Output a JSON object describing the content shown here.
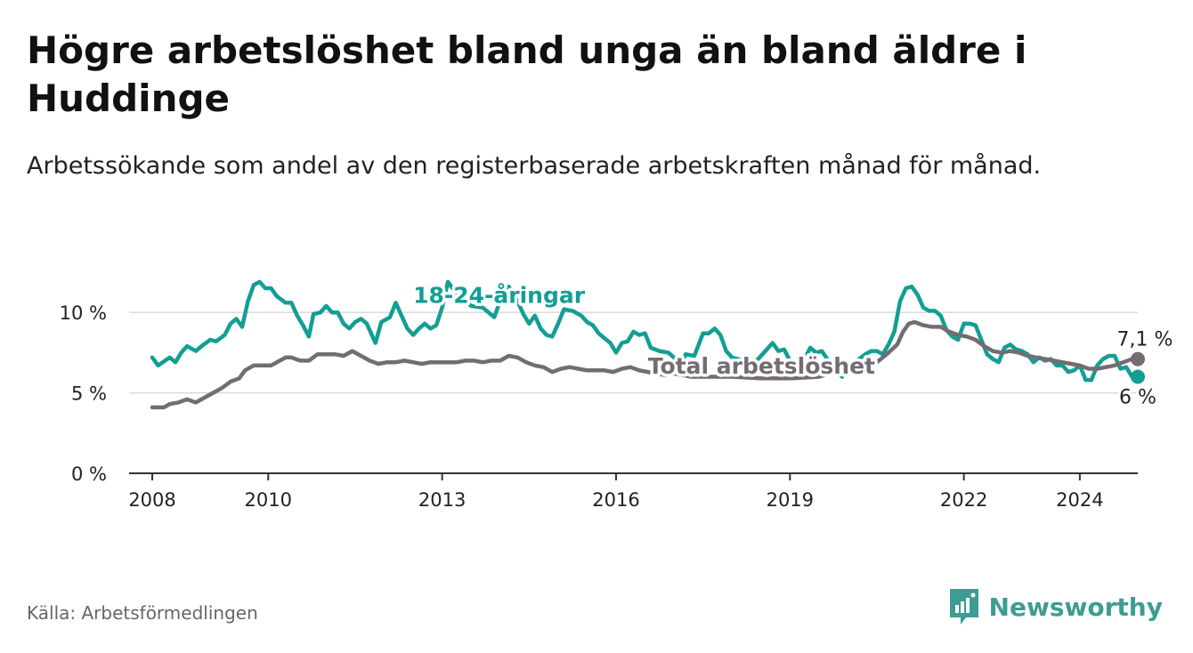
{
  "title": "Högre arbetslöshet bland unga än bland äldre i Huddinge",
  "subtitle": "Arbetssökande som andel av den registerbaserade arbetskraften månad för månad.",
  "source": "Källa: Arbetsförmedlingen",
  "brand": {
    "name": "Newsworthy",
    "icon": "newsworthy-logo-icon",
    "color": "#3d9c94"
  },
  "colors": {
    "youth": "#139e94",
    "total": "#736d73",
    "grid": "#d9d9d9",
    "axis": "#333333"
  },
  "chart_data": {
    "type": "line",
    "title": "Högre arbetslöshet bland unga än bland äldre i Huddinge",
    "xlabel": "",
    "ylabel": "",
    "xlim": [
      2007.6,
      2025.0
    ],
    "ylim": [
      0,
      12
    ],
    "y_ticks": [
      {
        "value": 0,
        "label": "0 %"
      },
      {
        "value": 5,
        "label": "5 %"
      },
      {
        "value": 10,
        "label": "10 %"
      }
    ],
    "x_ticks": [
      {
        "value": 2008,
        "label": "2008"
      },
      {
        "value": 2010,
        "label": "2010"
      },
      {
        "value": 2013,
        "label": "2013"
      },
      {
        "value": 2016,
        "label": "2016"
      },
      {
        "value": 2019,
        "label": "2019"
      },
      {
        "value": 2022,
        "label": "2022"
      },
      {
        "value": 2024,
        "label": "2024"
      }
    ],
    "series": [
      {
        "name": "18-24-åringar",
        "label": "18-24-åringar",
        "color": "#139e94",
        "end_label": "6 %",
        "points": [
          [
            2008.0,
            7.2
          ],
          [
            2008.1,
            6.7
          ],
          [
            2008.3,
            7.2
          ],
          [
            2008.4,
            6.9
          ],
          [
            2008.5,
            7.5
          ],
          [
            2008.6,
            7.9
          ],
          [
            2008.75,
            7.6
          ],
          [
            2008.85,
            7.9
          ],
          [
            2009.0,
            8.3
          ],
          [
            2009.1,
            8.2
          ],
          [
            2009.25,
            8.6
          ],
          [
            2009.35,
            9.3
          ],
          [
            2009.45,
            9.6
          ],
          [
            2009.55,
            9.1
          ],
          [
            2009.65,
            10.7
          ],
          [
            2009.75,
            11.7
          ],
          [
            2009.85,
            11.9
          ],
          [
            2009.95,
            11.5
          ],
          [
            2010.05,
            11.5
          ],
          [
            2010.15,
            11.0
          ],
          [
            2010.3,
            10.6
          ],
          [
            2010.4,
            10.6
          ],
          [
            2010.5,
            9.8
          ],
          [
            2010.6,
            9.2
          ],
          [
            2010.7,
            8.5
          ],
          [
            2010.78,
            9.9
          ],
          [
            2010.9,
            10.0
          ],
          [
            2011.0,
            10.4
          ],
          [
            2011.1,
            10.0
          ],
          [
            2011.2,
            10.0
          ],
          [
            2011.3,
            9.3
          ],
          [
            2011.4,
            9.0
          ],
          [
            2011.5,
            9.4
          ],
          [
            2011.6,
            9.6
          ],
          [
            2011.7,
            9.3
          ],
          [
            2011.85,
            8.1
          ],
          [
            2011.95,
            9.4
          ],
          [
            2012.1,
            9.7
          ],
          [
            2012.2,
            10.6
          ],
          [
            2012.3,
            9.8
          ],
          [
            2012.4,
            9.0
          ],
          [
            2012.5,
            8.6
          ],
          [
            2012.6,
            9.0
          ],
          [
            2012.7,
            9.3
          ],
          [
            2012.8,
            9.0
          ],
          [
            2012.9,
            9.2
          ],
          [
            2013.0,
            10.3
          ],
          [
            2013.1,
            11.9
          ],
          [
            2013.2,
            11.4
          ],
          [
            2013.3,
            11.0
          ],
          [
            2013.5,
            10.4
          ],
          [
            2013.7,
            10.3
          ],
          [
            2013.9,
            9.7
          ],
          [
            2014.0,
            10.7
          ],
          [
            2014.15,
            11.6
          ],
          [
            2014.3,
            10.7
          ],
          [
            2014.4,
            9.9
          ],
          [
            2014.5,
            9.3
          ],
          [
            2014.6,
            9.8
          ],
          [
            2014.7,
            9.0
          ],
          [
            2014.8,
            8.6
          ],
          [
            2014.9,
            8.5
          ],
          [
            2015.0,
            9.3
          ],
          [
            2015.1,
            10.2
          ],
          [
            2015.25,
            10.1
          ],
          [
            2015.4,
            9.8
          ],
          [
            2015.5,
            9.4
          ],
          [
            2015.6,
            9.2
          ],
          [
            2015.7,
            8.7
          ],
          [
            2015.8,
            8.4
          ],
          [
            2015.9,
            8.1
          ],
          [
            2016.0,
            7.5
          ],
          [
            2016.1,
            8.1
          ],
          [
            2016.2,
            8.2
          ],
          [
            2016.3,
            8.8
          ],
          [
            2016.4,
            8.6
          ],
          [
            2016.5,
            8.7
          ],
          [
            2016.6,
            7.8
          ],
          [
            2016.75,
            7.6
          ],
          [
            2016.9,
            7.5
          ],
          [
            2017.0,
            7.2
          ],
          [
            2017.1,
            6.5
          ],
          [
            2017.2,
            7.4
          ],
          [
            2017.35,
            7.3
          ],
          [
            2017.5,
            8.7
          ],
          [
            2017.6,
            8.7
          ],
          [
            2017.7,
            9.0
          ],
          [
            2017.8,
            8.6
          ],
          [
            2017.9,
            7.6
          ],
          [
            2018.0,
            7.2
          ],
          [
            2018.2,
            7.0
          ],
          [
            2018.4,
            6.9
          ],
          [
            2018.6,
            7.7
          ],
          [
            2018.7,
            8.1
          ],
          [
            2018.8,
            7.6
          ],
          [
            2018.9,
            7.7
          ],
          [
            2019.0,
            7.0
          ],
          [
            2019.1,
            6.9
          ],
          [
            2019.2,
            6.7
          ],
          [
            2019.35,
            7.8
          ],
          [
            2019.45,
            7.5
          ],
          [
            2019.55,
            7.6
          ],
          [
            2019.7,
            6.8
          ],
          [
            2019.8,
            6.3
          ],
          [
            2019.9,
            6.0
          ],
          [
            2020.0,
            6.6
          ],
          [
            2020.15,
            7.0
          ],
          [
            2020.3,
            7.4
          ],
          [
            2020.4,
            7.6
          ],
          [
            2020.5,
            7.6
          ],
          [
            2020.6,
            7.4
          ],
          [
            2020.7,
            8.0
          ],
          [
            2020.8,
            8.8
          ],
          [
            2020.9,
            10.7
          ],
          [
            2021.0,
            11.5
          ],
          [
            2021.1,
            11.6
          ],
          [
            2021.2,
            11.1
          ],
          [
            2021.3,
            10.3
          ],
          [
            2021.4,
            10.1
          ],
          [
            2021.5,
            10.1
          ],
          [
            2021.6,
            9.8
          ],
          [
            2021.7,
            8.9
          ],
          [
            2021.8,
            8.5
          ],
          [
            2021.9,
            8.3
          ],
          [
            2022.0,
            9.3
          ],
          [
            2022.1,
            9.3
          ],
          [
            2022.2,
            9.2
          ],
          [
            2022.3,
            8.3
          ],
          [
            2022.4,
            7.4
          ],
          [
            2022.5,
            7.1
          ],
          [
            2022.6,
            6.9
          ],
          [
            2022.7,
            7.8
          ],
          [
            2022.8,
            8.0
          ],
          [
            2022.9,
            7.7
          ],
          [
            2023.0,
            7.6
          ],
          [
            2023.1,
            7.4
          ],
          [
            2023.2,
            6.9
          ],
          [
            2023.3,
            7.2
          ],
          [
            2023.4,
            7.0
          ],
          [
            2023.5,
            7.1
          ],
          [
            2023.6,
            6.7
          ],
          [
            2023.7,
            6.7
          ],
          [
            2023.8,
            6.3
          ],
          [
            2023.9,
            6.4
          ],
          [
            2024.0,
            6.7
          ],
          [
            2024.1,
            5.8
          ],
          [
            2024.2,
            5.8
          ],
          [
            2024.3,
            6.7
          ],
          [
            2024.4,
            7.1
          ],
          [
            2024.5,
            7.3
          ],
          [
            2024.6,
            7.3
          ],
          [
            2024.7,
            6.5
          ],
          [
            2024.8,
            6.6
          ],
          [
            2024.9,
            6.0
          ],
          [
            2025.0,
            6.0
          ]
        ]
      },
      {
        "name": "Total arbetslöshet",
        "label": "Total arbetslöshet",
        "color": "#736d73",
        "end_label": "7,1 %",
        "points": [
          [
            2008.0,
            4.1
          ],
          [
            2008.2,
            4.1
          ],
          [
            2008.3,
            4.3
          ],
          [
            2008.45,
            4.4
          ],
          [
            2008.6,
            4.6
          ],
          [
            2008.75,
            4.4
          ],
          [
            2008.9,
            4.7
          ],
          [
            2009.05,
            5.0
          ],
          [
            2009.2,
            5.3
          ],
          [
            2009.35,
            5.7
          ],
          [
            2009.5,
            5.9
          ],
          [
            2009.6,
            6.4
          ],
          [
            2009.75,
            6.7
          ],
          [
            2009.9,
            6.7
          ],
          [
            2010.05,
            6.7
          ],
          [
            2010.2,
            7.0
          ],
          [
            2010.3,
            7.2
          ],
          [
            2010.4,
            7.2
          ],
          [
            2010.55,
            7.0
          ],
          [
            2010.7,
            7.0
          ],
          [
            2010.85,
            7.4
          ],
          [
            2011.0,
            7.4
          ],
          [
            2011.15,
            7.4
          ],
          [
            2011.3,
            7.3
          ],
          [
            2011.45,
            7.6
          ],
          [
            2011.6,
            7.3
          ],
          [
            2011.75,
            7.0
          ],
          [
            2011.9,
            6.8
          ],
          [
            2012.05,
            6.9
          ],
          [
            2012.2,
            6.9
          ],
          [
            2012.35,
            7.0
          ],
          [
            2012.5,
            6.9
          ],
          [
            2012.65,
            6.8
          ],
          [
            2012.8,
            6.9
          ],
          [
            2012.95,
            6.9
          ],
          [
            2013.1,
            6.9
          ],
          [
            2013.25,
            6.9
          ],
          [
            2013.4,
            7.0
          ],
          [
            2013.55,
            7.0
          ],
          [
            2013.7,
            6.9
          ],
          [
            2013.85,
            7.0
          ],
          [
            2014.0,
            7.0
          ],
          [
            2014.15,
            7.3
          ],
          [
            2014.3,
            7.2
          ],
          [
            2014.45,
            6.9
          ],
          [
            2014.6,
            6.7
          ],
          [
            2014.75,
            6.6
          ],
          [
            2014.9,
            6.3
          ],
          [
            2015.05,
            6.5
          ],
          [
            2015.2,
            6.6
          ],
          [
            2015.35,
            6.5
          ],
          [
            2015.5,
            6.4
          ],
          [
            2015.65,
            6.4
          ],
          [
            2015.8,
            6.4
          ],
          [
            2015.95,
            6.3
          ],
          [
            2016.1,
            6.5
          ],
          [
            2016.25,
            6.6
          ],
          [
            2016.4,
            6.4
          ],
          [
            2016.55,
            6.3
          ],
          [
            2016.7,
            6.2
          ],
          [
            2016.85,
            6.1
          ],
          [
            2017.0,
            6.2
          ],
          [
            2017.3,
            6.0
          ],
          [
            2017.6,
            6.0
          ],
          [
            2018.0,
            6.0
          ],
          [
            2018.5,
            5.9
          ],
          [
            2019.0,
            5.9
          ],
          [
            2019.5,
            6.0
          ],
          [
            2020.0,
            6.5
          ],
          [
            2020.3,
            6.8
          ],
          [
            2020.5,
            6.9
          ],
          [
            2020.7,
            7.5
          ],
          [
            2020.85,
            8.0
          ],
          [
            2020.95,
            8.8
          ],
          [
            2021.05,
            9.3
          ],
          [
            2021.15,
            9.4
          ],
          [
            2021.3,
            9.2
          ],
          [
            2021.45,
            9.1
          ],
          [
            2021.6,
            9.1
          ],
          [
            2021.75,
            8.8
          ],
          [
            2021.9,
            8.6
          ],
          [
            2022.05,
            8.5
          ],
          [
            2022.2,
            8.3
          ],
          [
            2022.35,
            7.9
          ],
          [
            2022.5,
            7.6
          ],
          [
            2022.65,
            7.5
          ],
          [
            2022.8,
            7.6
          ],
          [
            2022.95,
            7.5
          ],
          [
            2023.1,
            7.3
          ],
          [
            2023.25,
            7.2
          ],
          [
            2023.4,
            7.1
          ],
          [
            2023.55,
            7.0
          ],
          [
            2023.7,
            6.9
          ],
          [
            2023.85,
            6.8
          ],
          [
            2024.0,
            6.7
          ],
          [
            2024.15,
            6.5
          ],
          [
            2024.3,
            6.5
          ],
          [
            2024.45,
            6.6
          ],
          [
            2024.6,
            6.7
          ],
          [
            2024.75,
            6.9
          ],
          [
            2024.9,
            7.1
          ],
          [
            2025.0,
            7.1
          ]
        ]
      }
    ]
  }
}
